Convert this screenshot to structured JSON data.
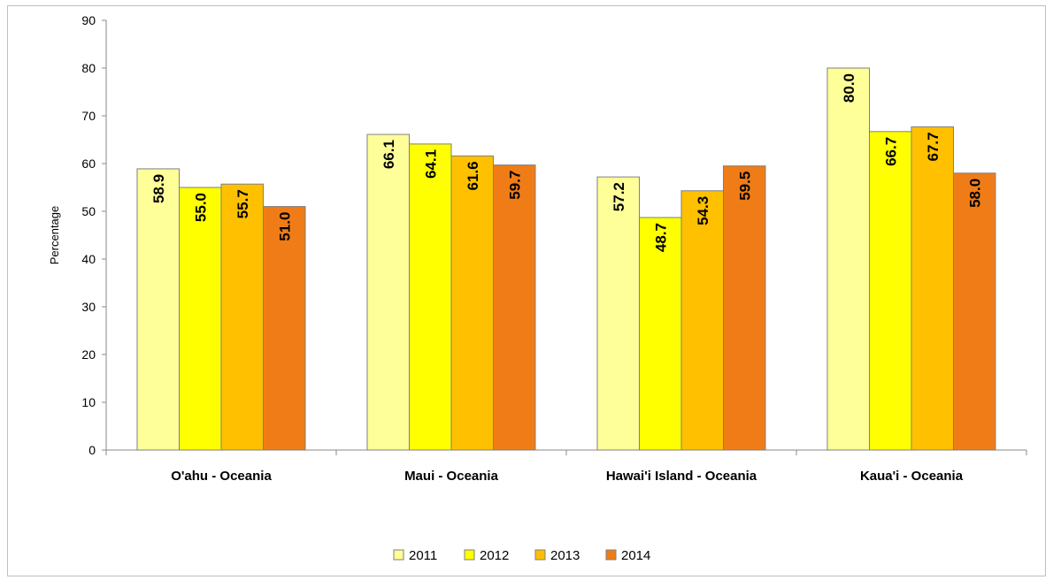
{
  "chart_data": {
    "type": "bar",
    "categories": [
      "O'ahu - Oceania",
      "Maui - Oceania",
      "Hawai'i Island - Oceania",
      "Kaua'i - Oceania"
    ],
    "series": [
      {
        "name": "2011",
        "color": "#ffff99",
        "values": [
          58.9,
          66.1,
          57.2,
          80.0
        ],
        "labels": [
          "58.9",
          "66.1",
          "57.2",
          "80.0"
        ]
      },
      {
        "name": "2012",
        "color": "#ffff00",
        "values": [
          55.0,
          64.1,
          48.7,
          66.7
        ],
        "labels": [
          "55.0",
          "64.1",
          "48.7",
          "66.7"
        ]
      },
      {
        "name": "2013",
        "color": "#ffc000",
        "values": [
          55.7,
          61.6,
          54.3,
          67.7
        ],
        "labels": [
          "55.7",
          "61.6",
          "54.3",
          "67.7"
        ]
      },
      {
        "name": "2014",
        "color": "#f07c17",
        "values": [
          51.0,
          59.7,
          59.5,
          58.0
        ],
        "labels": [
          "51.0",
          "59.7",
          "59.5",
          "58.0"
        ]
      }
    ],
    "ylabel": "Percentage",
    "xlabel": "",
    "ylim": [
      0,
      90
    ],
    "yticks": [
      "0",
      "10",
      "20",
      "30",
      "40",
      "50",
      "60",
      "70",
      "80",
      "90"
    ],
    "grid": false,
    "legend_position": "bottom"
  }
}
